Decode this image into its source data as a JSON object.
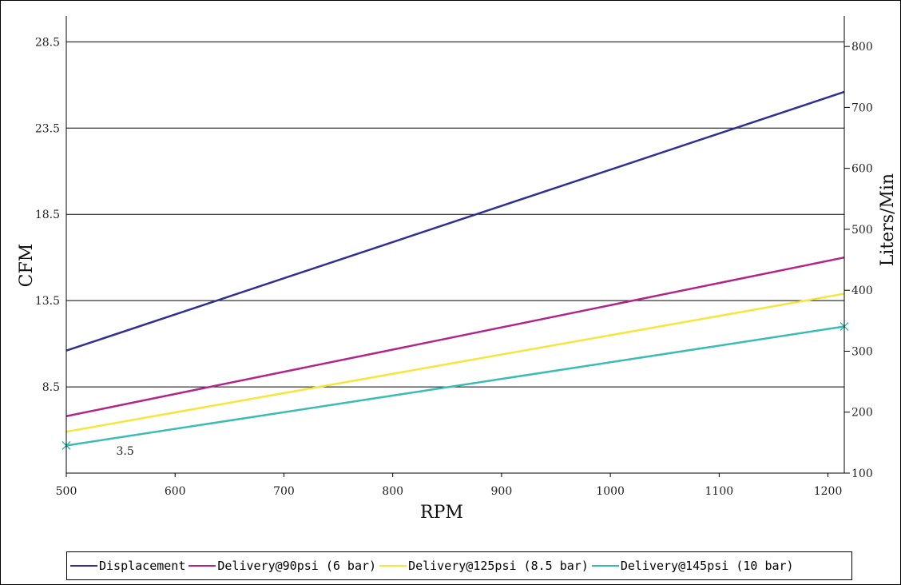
{
  "chart_data": {
    "type": "line",
    "xlabel": "RPM",
    "ylabel": "CFM",
    "y2label": "Liters/Min",
    "xlim": [
      500,
      1215
    ],
    "ylim": [
      3.5,
      30
    ],
    "y2lim": [
      100,
      850
    ],
    "x_ticks": [
      "500",
      "600",
      "700",
      "800",
      "900",
      "1000",
      "1100",
      "1200"
    ],
    "y_ticks": [
      "8.5",
      "13.5",
      "18.5",
      "23.5",
      "28.5"
    ],
    "y2_ticks": [
      "100",
      "200",
      "300",
      "400",
      "500",
      "600",
      "700",
      "800"
    ],
    "grid": "horizontal",
    "legend_position": "bottom",
    "annotations": [
      {
        "text": "3.5",
        "x": 540,
        "y": 4.8
      }
    ],
    "series": [
      {
        "name": "Displacement",
        "color": "#2e3192",
        "x": [
          500,
          1215
        ],
        "y": [
          10.6,
          25.6
        ],
        "marker": "none"
      },
      {
        "name": "Delivery@90psi (6 bar)",
        "color": "#b0268c",
        "x": [
          500,
          1215
        ],
        "y": [
          6.8,
          16.0
        ],
        "marker": "none"
      },
      {
        "name": "Delivery@125psi (8.5 bar)",
        "color": "#f5e63c",
        "x": [
          500,
          1215
        ],
        "y": [
          5.9,
          13.9
        ],
        "marker": "none"
      },
      {
        "name": "Delivery@145psi (10 bar)",
        "color": "#3bbcb3",
        "x": [
          500,
          1215
        ],
        "y": [
          5.1,
          12.0
        ],
        "marker": "x"
      }
    ]
  }
}
